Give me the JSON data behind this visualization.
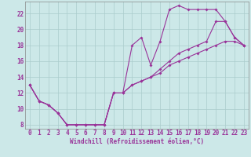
{
  "xlabel": "Windchill (Refroidissement éolien,°C)",
  "bg_color": "#cce8e8",
  "line_color": "#993399",
  "grid_color": "#aacccc",
  "spine_color": "#888888",
  "xlim": [
    -0.5,
    23.5
  ],
  "ylim": [
    7.5,
    23.5
  ],
  "xticks": [
    0,
    1,
    2,
    3,
    4,
    5,
    6,
    7,
    8,
    9,
    10,
    11,
    12,
    13,
    14,
    15,
    16,
    17,
    18,
    19,
    20,
    21,
    22,
    23
  ],
  "yticks": [
    8,
    10,
    12,
    14,
    16,
    18,
    20,
    22
  ],
  "line1_x": [
    0,
    1,
    2,
    3,
    4,
    5,
    6,
    7,
    8,
    9,
    10,
    11,
    12,
    13,
    14,
    15,
    16,
    17,
    18,
    19,
    20,
    21,
    22,
    23
  ],
  "line1_y": [
    13,
    11,
    10.5,
    9.5,
    8,
    8,
    8,
    8,
    8,
    12,
    12,
    18,
    19,
    15.5,
    18.5,
    22.5,
    23,
    22.5,
    22.5,
    22.5,
    22.5,
    21,
    19,
    18
  ],
  "line2_x": [
    0,
    1,
    2,
    3,
    4,
    5,
    6,
    7,
    8,
    9,
    10,
    11,
    12,
    13,
    14,
    15,
    16,
    17,
    18,
    19,
    20,
    21,
    22,
    23
  ],
  "line2_y": [
    13,
    11,
    10.5,
    9.5,
    8,
    8,
    8,
    8,
    8,
    12,
    12,
    13,
    13.5,
    14,
    15,
    16,
    17,
    17.5,
    18,
    18.5,
    21,
    21,
    19,
    18
  ],
  "line3_x": [
    0,
    1,
    2,
    3,
    4,
    5,
    6,
    7,
    8,
    9,
    10,
    11,
    12,
    13,
    14,
    15,
    16,
    17,
    18,
    19,
    20,
    21,
    22,
    23
  ],
  "line3_y": [
    13,
    11,
    10.5,
    9.5,
    8,
    8,
    8,
    8,
    8,
    12,
    12,
    13,
    13.5,
    14,
    14.5,
    15.5,
    16,
    16.5,
    17,
    17.5,
    18,
    18.5,
    18.5,
    18
  ],
  "tick_fontsize": 5.5,
  "xlabel_fontsize": 5.5
}
